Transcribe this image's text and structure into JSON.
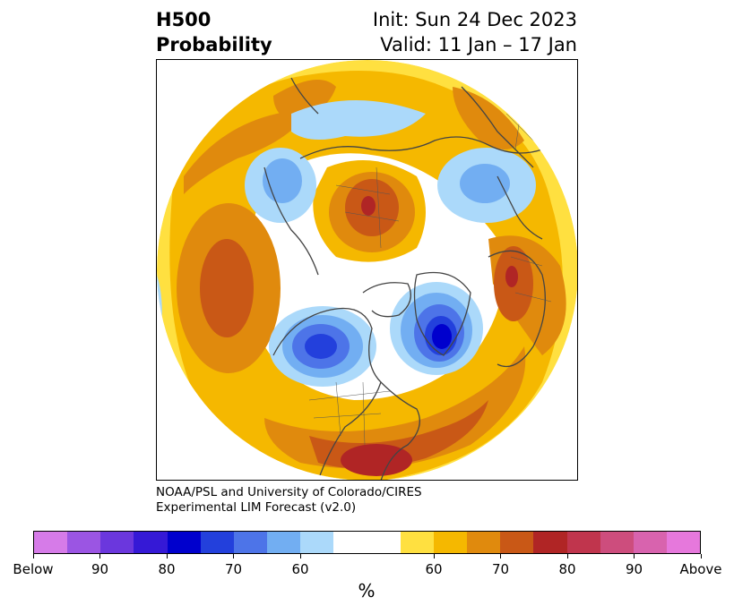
{
  "header": {
    "title_line1": "H500",
    "title_line2": "Probability",
    "init_label": "Init: Sun 24 Dec 2023",
    "valid_label": "Valid: 11 Jan – 17 Jan"
  },
  "credit": {
    "line1": "NOAA/PSL and University of Colorado/CIRES",
    "line2": "Experimental LIM Forecast (v2.0)"
  },
  "colorbar": {
    "colors": [
      "#d67be8",
      "#9b55e3",
      "#6b37dd",
      "#3519d6",
      "#0000cd",
      "#2340dc",
      "#4d74e8",
      "#72aef2",
      "#abd9fa",
      "#ffffff",
      "#ffffff",
      "#ffe040",
      "#f5b800",
      "#e08a0d",
      "#c95816",
      "#b02525",
      "#c0354d",
      "#cd4d7d",
      "#d863ae",
      "#e678dc"
    ],
    "tick_labels": [
      "Below",
      "90",
      "80",
      "70",
      "60",
      "60",
      "70",
      "80",
      "90",
      "Above"
    ],
    "unit": "%"
  },
  "map": {
    "projection": "north-polar-stereographic",
    "positive_color": "#f5b800",
    "negative_color": "#4d74e8"
  }
}
